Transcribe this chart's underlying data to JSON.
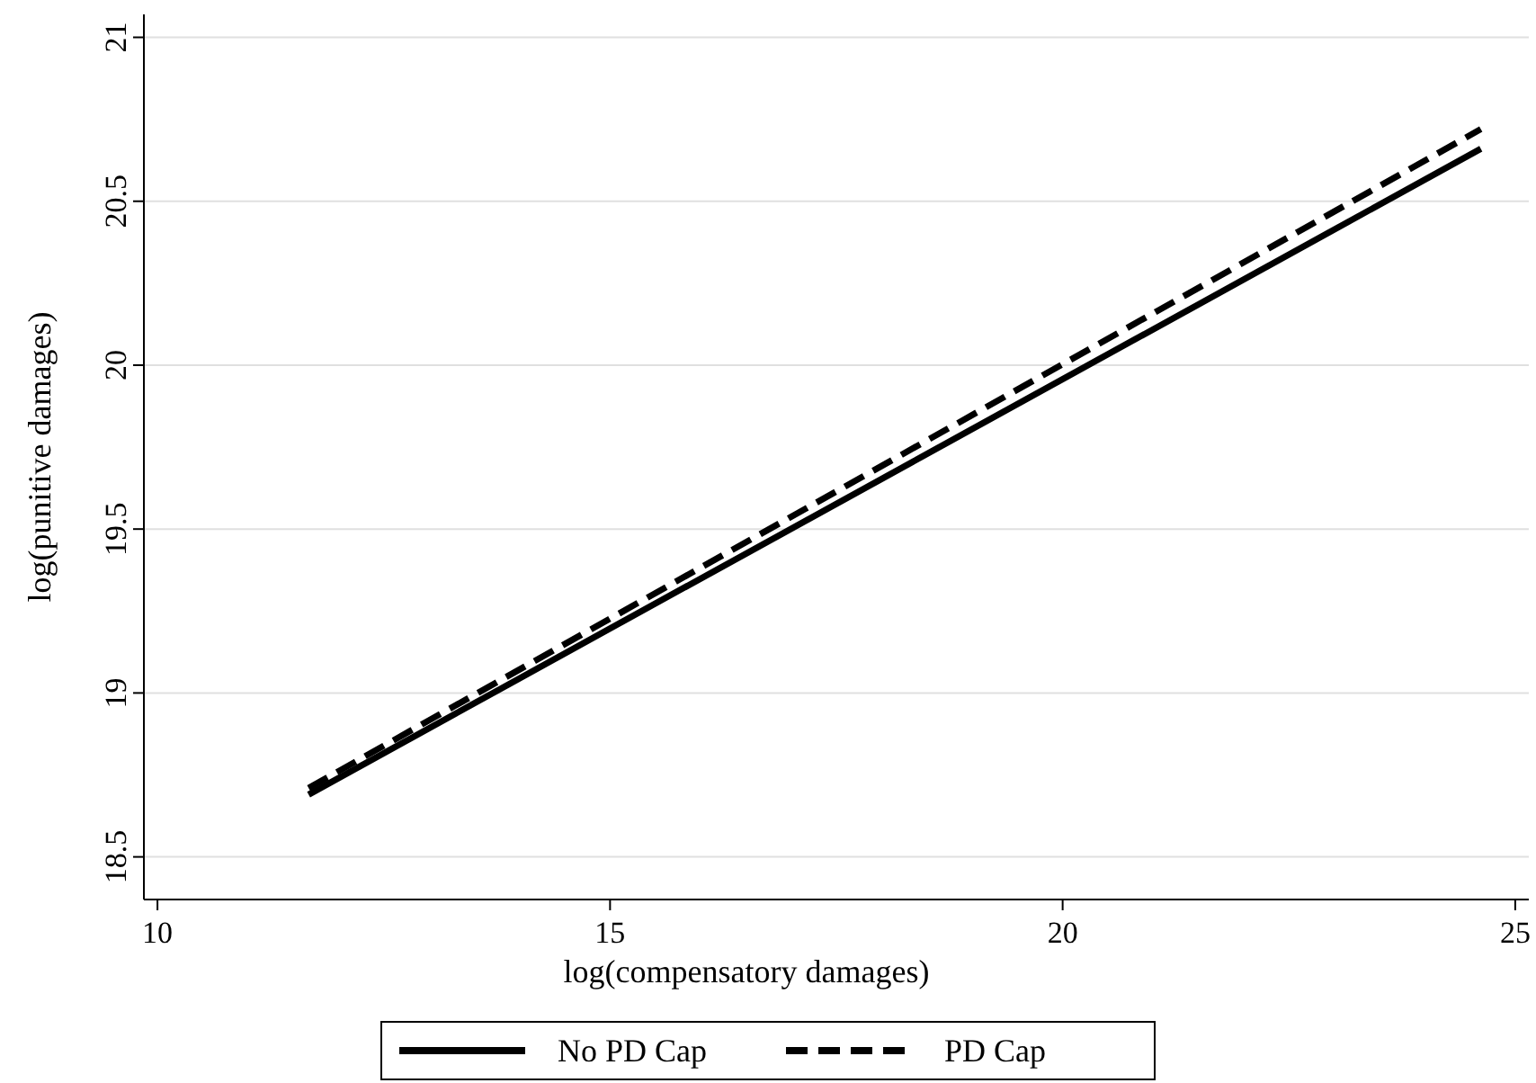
{
  "chart_data": {
    "type": "line",
    "xlabel": "log(compensatory damages)",
    "ylabel": "log(punitive damages)",
    "xlim": [
      9.85,
      25.15
    ],
    "xticks": [
      10,
      15,
      20,
      25
    ],
    "ylim": [
      18.37,
      21.07
    ],
    "yticks": [
      18.5,
      19,
      19.5,
      20,
      20.5,
      21
    ],
    "grid": "y",
    "legend": "bottom",
    "x": [
      11.67,
      24.62
    ],
    "series": [
      {
        "name": "No PD Cap",
        "color": "#000000",
        "line_style": "solid",
        "values": [
          18.69,
          20.66
        ]
      },
      {
        "name": "PD Cap",
        "color": "#000000",
        "line_style": "dashed",
        "values": [
          18.71,
          20.72
        ]
      }
    ]
  }
}
